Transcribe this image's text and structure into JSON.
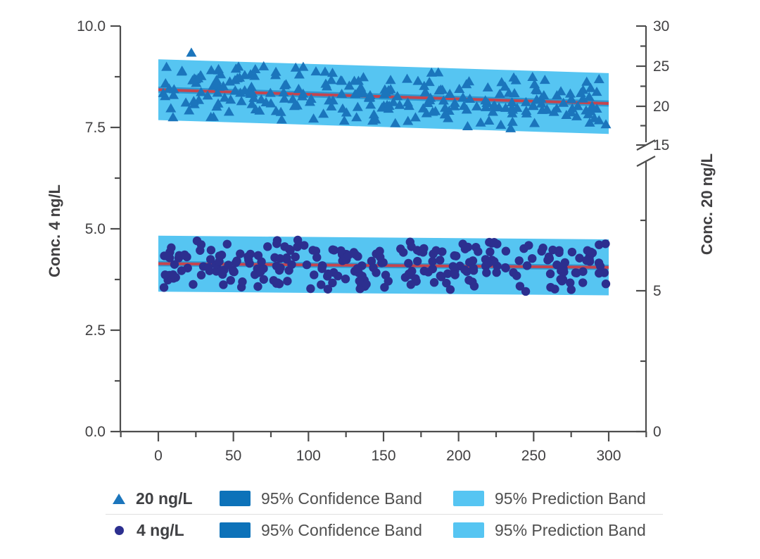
{
  "figure": {
    "background": "#ffffff"
  },
  "colors": {
    "axis": "#4d4d4d",
    "tick_text": "#414042",
    "series_20_marker": "#1b75bc",
    "series_4_marker": "#2c2f8f",
    "confidence_band": "#0d72b9",
    "prediction_band": "#56c5f2",
    "fit_line": "#c4454f",
    "legend_text": "#4f4f4f",
    "legend_divider": "#e0e0e0"
  },
  "chart_data": {
    "type": "scatter",
    "grid": false,
    "legend_position": "bottom",
    "x_axis": {
      "label": "",
      "ticks": [
        0,
        50,
        100,
        150,
        200,
        250,
        300
      ],
      "tick_labels": [
        "0",
        "50",
        "100",
        "150",
        "200",
        "250",
        "300"
      ],
      "minor_step": 25,
      "range": [
        -25,
        325
      ]
    },
    "y_left": {
      "title": "Conc. 4 ng/L",
      "tick_labels": [
        "0.0",
        "2.5",
        "5.0",
        "7.5",
        "10.0"
      ],
      "tick_values": [
        0,
        2.5,
        5.0,
        7.5,
        10.0
      ],
      "minor_values": [
        1.25,
        3.75,
        6.25,
        8.75
      ],
      "range": [
        0,
        10
      ]
    },
    "y_right": {
      "title": "Conc. 20 ng/L",
      "upper_ticks": [
        15,
        20,
        25,
        30
      ],
      "lower_ticks": [
        0,
        5
      ],
      "axis_break_between": [
        10,
        15
      ]
    },
    "series": [
      {
        "name": "20 ng/L",
        "marker": "triangle",
        "points_n": 255,
        "x_range": [
          0,
          300
        ],
        "fit_line": {
          "x": [
            0,
            300
          ],
          "y_left_units": [
            8.43,
            8.09
          ],
          "y_right_units": [
            21.9,
            20.1
          ]
        },
        "prediction_band_halfwidth": 0.75,
        "confidence_band_halfwidth": 0.075,
        "scatter_halfwidth": 0.68,
        "outliers": [
          [
            22,
            9.35
          ]
        ],
        "seed": 101
      },
      {
        "name": "4 ng/L",
        "marker": "circle",
        "points_n": 255,
        "x_range": [
          0,
          300
        ],
        "fit_line": {
          "x": [
            0,
            300
          ],
          "y_left_units": [
            4.14,
            4.05
          ]
        },
        "prediction_band_halfwidth": 0.69,
        "confidence_band_halfwidth": 0.065,
        "scatter_halfwidth": 0.62,
        "outliers": [],
        "seed": 202
      }
    ]
  },
  "legend": {
    "rows": [
      {
        "series": "20 ng/L",
        "marker": "triangle",
        "confidence_label": "95% Confidence Band",
        "prediction_label": "95% Prediction Band"
      },
      {
        "series": "4 ng/L",
        "marker": "circle",
        "confidence_label": "95% Confidence Band",
        "prediction_label": "95% Prediction Band"
      }
    ]
  }
}
